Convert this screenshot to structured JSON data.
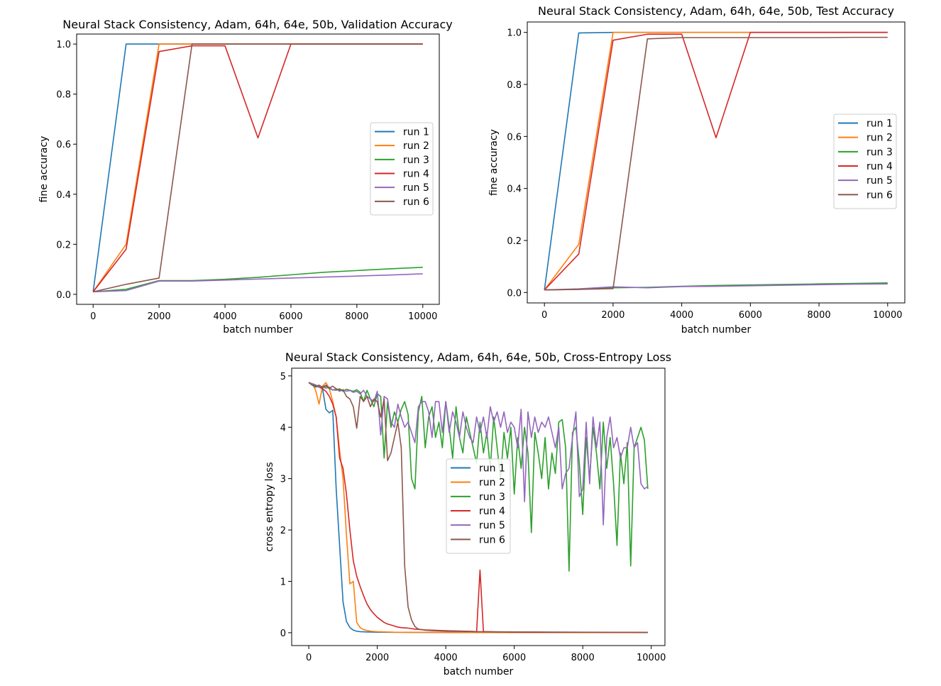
{
  "colors": {
    "run 1": "#1f77b4",
    "run 2": "#ff7f0e",
    "run 3": "#2ca02c",
    "run 4": "#d62728",
    "run 5": "#9467bd",
    "run 6": "#8c564b"
  },
  "chart_data": [
    {
      "type": "line",
      "title": "Neural Stack Consistency, Adam, 64h, 64e, 50b, Validation Accuracy",
      "xlabel": "batch number",
      "ylabel": "fine accuracy",
      "xlim": [
        -500,
        10500
      ],
      "ylim": [
        -0.04,
        1.04
      ],
      "xticks": [
        "0",
        "2000",
        "4000",
        "6000",
        "8000",
        "10000"
      ],
      "yticks": [
        "0.0",
        "0.2",
        "0.4",
        "0.6",
        "0.8",
        "1.0"
      ],
      "legend": "center-right",
      "x": [
        0,
        1000,
        2000,
        3000,
        4000,
        5000,
        6000,
        7000,
        8000,
        9000,
        10000
      ],
      "series": [
        {
          "name": "run 1",
          "values": [
            0.01,
            1.0,
            1.0,
            1.0,
            1.0,
            1.0,
            1.0,
            1.0,
            1.0,
            1.0,
            1.0
          ]
        },
        {
          "name": "run 2",
          "values": [
            0.01,
            0.2,
            1.0,
            1.0,
            1.0,
            1.0,
            1.0,
            1.0,
            1.0,
            1.0,
            1.0
          ]
        },
        {
          "name": "run 3",
          "values": [
            0.01,
            0.02,
            0.055,
            0.055,
            0.06,
            0.068,
            0.078,
            0.088,
            0.095,
            0.102,
            0.108
          ]
        },
        {
          "name": "run 4",
          "values": [
            0.01,
            0.18,
            0.97,
            0.993,
            0.993,
            0.625,
            1.0,
            1.0,
            1.0,
            1.0,
            1.0
          ]
        },
        {
          "name": "run 5",
          "values": [
            0.01,
            0.015,
            0.053,
            0.053,
            0.057,
            0.061,
            0.065,
            0.069,
            0.073,
            0.077,
            0.082
          ]
        },
        {
          "name": "run 6",
          "values": [
            0.01,
            0.04,
            0.065,
            1.0,
            1.0,
            1.0,
            1.0,
            1.0,
            1.0,
            1.0,
            1.0
          ]
        }
      ]
    },
    {
      "type": "line",
      "title": "Neural Stack Consistency, Adam, 64h, 64e, 50b, Test Accuracy",
      "xlabel": "batch number",
      "ylabel": "fine accuracy",
      "xlim": [
        -500,
        10500
      ],
      "ylim": [
        -0.04,
        1.04
      ],
      "xticks": [
        "0",
        "2000",
        "4000",
        "6000",
        "8000",
        "10000"
      ],
      "yticks": [
        "0.0",
        "0.2",
        "0.4",
        "0.6",
        "0.8",
        "1.0"
      ],
      "legend": "center-right",
      "x": [
        0,
        1000,
        2000,
        3000,
        4000,
        5000,
        6000,
        7000,
        8000,
        9000,
        10000
      ],
      "series": [
        {
          "name": "run 1",
          "values": [
            0.01,
            0.998,
            1.0,
            1.0,
            1.0,
            1.0,
            1.0,
            1.0,
            1.0,
            1.0,
            1.0
          ]
        },
        {
          "name": "run 2",
          "values": [
            0.01,
            0.185,
            1.0,
            1.0,
            1.0,
            1.0,
            1.0,
            1.0,
            1.0,
            1.0,
            1.0
          ]
        },
        {
          "name": "run 3",
          "values": [
            0.01,
            0.012,
            0.018,
            0.02,
            0.024,
            0.027,
            0.029,
            0.031,
            0.033,
            0.035,
            0.037
          ]
        },
        {
          "name": "run 4",
          "values": [
            0.01,
            0.148,
            0.97,
            0.993,
            0.993,
            0.595,
            1.0,
            1.0,
            1.0,
            1.0,
            1.0
          ]
        },
        {
          "name": "run 5",
          "values": [
            0.01,
            0.014,
            0.022,
            0.018,
            0.023,
            0.024,
            0.026,
            0.028,
            0.03,
            0.032,
            0.033
          ]
        },
        {
          "name": "run 6",
          "values": [
            0.01,
            0.012,
            0.015,
            0.975,
            0.98,
            0.98,
            0.98,
            0.98,
            0.98,
            0.981,
            0.981
          ]
        }
      ]
    },
    {
      "type": "line",
      "title": "Neural Stack Consistency, Adam, 64h, 64e, 50b, Cross-Entropy Loss",
      "xlabel": "batch number",
      "ylabel": "cross entropy loss",
      "xlim": [
        -500,
        10400
      ],
      "ylim": [
        -0.25,
        5.15
      ],
      "xticks": [
        "0",
        "2000",
        "4000",
        "6000",
        "8000",
        "10000"
      ],
      "yticks": [
        "0",
        "1",
        "2",
        "3",
        "4",
        "5"
      ],
      "legend": "center",
      "series": [
        {
          "name": "run 1",
          "x": [
            0,
            100,
            200,
            300,
            400,
            500,
            600,
            700,
            800,
            900,
            1000,
            1100,
            1200,
            1300,
            1400,
            1500,
            1700,
            2000,
            2500,
            3000,
            4000,
            5000,
            6000,
            7000,
            8000,
            9000,
            9900
          ],
          "values": [
            4.87,
            4.85,
            4.82,
            4.79,
            4.76,
            4.35,
            4.28,
            4.33,
            2.8,
            1.7,
            0.6,
            0.22,
            0.1,
            0.05,
            0.03,
            0.02,
            0.015,
            0.01,
            0.008,
            0.006,
            0.005,
            0.004,
            0.004,
            0.003,
            0.003,
            0.003,
            0.003
          ]
        },
        {
          "name": "run 2",
          "x": [
            0,
            100,
            200,
            300,
            400,
            500,
            600,
            700,
            800,
            900,
            1000,
            1100,
            1200,
            1300,
            1400,
            1500,
            1600,
            1800,
            2000,
            2500,
            3000,
            4000,
            5000,
            6000,
            7000,
            8000,
            9000,
            9900
          ],
          "values": [
            4.87,
            4.85,
            4.72,
            4.45,
            4.8,
            4.87,
            4.75,
            4.5,
            4.2,
            3.55,
            3.0,
            1.9,
            0.95,
            1.0,
            0.2,
            0.1,
            0.06,
            0.03,
            0.02,
            0.01,
            0.008,
            0.006,
            0.005,
            0.004,
            0.004,
            0.003,
            0.003,
            0.003
          ]
        },
        {
          "name": "run 3",
          "x": [
            0,
            100,
            200,
            300,
            400,
            500,
            600,
            700,
            800,
            900,
            1000,
            1100,
            1200,
            1300,
            1400,
            1500,
            1600,
            1700,
            1800,
            1900,
            2000,
            2100,
            2200,
            2300,
            2400,
            2500,
            2600,
            2700,
            2800,
            2900,
            3000,
            3100,
            3200,
            3300,
            3400,
            3500,
            3600,
            3700,
            3800,
            3900,
            4000,
            4100,
            4200,
            4300,
            4400,
            4500,
            4600,
            4700,
            4800,
            4900,
            5000,
            5100,
            5200,
            5300,
            5400,
            5500,
            5600,
            5700,
            5800,
            5900,
            6000,
            6100,
            6200,
            6300,
            6400,
            6500,
            6600,
            6700,
            6800,
            6900,
            7000,
            7100,
            7200,
            7300,
            7400,
            7500,
            7600,
            7700,
            7800,
            7900,
            8000,
            8100,
            8200,
            8300,
            8400,
            8500,
            8600,
            8700,
            8800,
            8900,
            9000,
            9100,
            9200,
            9300,
            9400,
            9500,
            9600,
            9700,
            9800,
            9900
          ],
          "values": [
            4.87,
            4.82,
            4.78,
            4.8,
            4.76,
            4.8,
            4.75,
            4.73,
            4.72,
            4.75,
            4.7,
            4.74,
            4.72,
            4.7,
            4.73,
            4.68,
            4.5,
            4.72,
            4.55,
            4.4,
            4.65,
            4.6,
            3.4,
            4.5,
            4.0,
            4.3,
            4.1,
            4.35,
            4.5,
            4.25,
            3.0,
            2.8,
            4.3,
            4.6,
            3.6,
            4.2,
            4.4,
            3.8,
            4.1,
            3.6,
            4.5,
            4.0,
            3.4,
            4.4,
            3.8,
            3.5,
            4.2,
            3.9,
            3.6,
            3.3,
            4.1,
            3.5,
            3.9,
            3.2,
            4.2,
            3.6,
            3.0,
            3.9,
            3.4,
            4.0,
            2.7,
            3.8,
            3.2,
            4.0,
            3.5,
            1.95,
            3.9,
            3.5,
            3.0,
            3.8,
            2.8,
            3.5,
            3.1,
            4.1,
            4.15,
            3.6,
            1.2,
            3.9,
            4.0,
            3.3,
            2.3,
            3.8,
            3.0,
            4.0,
            3.5,
            2.8,
            4.1,
            3.2,
            3.8,
            2.9,
            1.7,
            3.5,
            2.9,
            3.7,
            1.3,
            3.6,
            3.8,
            4.0,
            3.75,
            2.8
          ]
        },
        {
          "name": "run 4",
          "x": [
            0,
            100,
            200,
            300,
            400,
            500,
            600,
            700,
            800,
            900,
            1000,
            1100,
            1200,
            1300,
            1400,
            1500,
            1600,
            1700,
            1800,
            1900,
            2000,
            2100,
            2200,
            2300,
            2400,
            2500,
            2600,
            2700,
            2800,
            2900,
            3000,
            3100,
            3200,
            3400,
            3600,
            3800,
            4000,
            4200,
            4500,
            4800,
            4900,
            5000,
            5100,
            5200,
            5500,
            6000,
            7000,
            8000,
            9000,
            9900
          ],
          "values": [
            4.87,
            4.83,
            4.8,
            4.78,
            4.75,
            4.7,
            4.6,
            4.45,
            4.2,
            3.4,
            3.2,
            2.7,
            2.0,
            1.4,
            1.1,
            0.9,
            0.72,
            0.56,
            0.45,
            0.37,
            0.3,
            0.25,
            0.2,
            0.17,
            0.15,
            0.13,
            0.11,
            0.1,
            0.095,
            0.09,
            0.08,
            0.07,
            0.065,
            0.055,
            0.05,
            0.045,
            0.04,
            0.035,
            0.03,
            0.025,
            0.02,
            1.22,
            0.02,
            0.02,
            0.015,
            0.012,
            0.01,
            0.008,
            0.006,
            0.005
          ]
        },
        {
          "name": "run 5",
          "x": [
            0,
            100,
            200,
            300,
            400,
            500,
            600,
            700,
            800,
            900,
            1000,
            1100,
            1200,
            1300,
            1400,
            1500,
            1600,
            1700,
            1800,
            1900,
            2000,
            2100,
            2200,
            2300,
            2400,
            2500,
            2600,
            2700,
            2800,
            2900,
            3000,
            3100,
            3200,
            3300,
            3400,
            3500,
            3600,
            3700,
            3800,
            3900,
            4000,
            4100,
            4200,
            4300,
            4400,
            4500,
            4600,
            4700,
            4800,
            4900,
            5000,
            5100,
            5200,
            5300,
            5400,
            5500,
            5600,
            5700,
            5800,
            5900,
            6000,
            6100,
            6200,
            6300,
            6400,
            6500,
            6600,
            6700,
            6800,
            6900,
            7000,
            7100,
            7200,
            7300,
            7400,
            7500,
            7600,
            7700,
            7800,
            7900,
            8000,
            8100,
            8200,
            8300,
            8400,
            8500,
            8600,
            8700,
            8800,
            8900,
            9000,
            9100,
            9200,
            9300,
            9400,
            9500,
            9600,
            9700,
            9800,
            9900
          ],
          "values": [
            4.87,
            4.84,
            4.8,
            4.78,
            4.79,
            4.76,
            4.78,
            4.72,
            4.75,
            4.7,
            4.73,
            4.7,
            4.72,
            4.68,
            4.7,
            4.65,
            4.72,
            4.6,
            4.55,
            4.5,
            4.7,
            3.85,
            4.6,
            4.55,
            4.1,
            4.0,
            4.45,
            4.2,
            4.0,
            4.1,
            3.9,
            3.7,
            4.4,
            4.5,
            4.5,
            4.3,
            3.8,
            4.5,
            4.5,
            3.9,
            4.5,
            3.9,
            4.3,
            4.1,
            3.8,
            4.3,
            4.0,
            3.8,
            3.7,
            4.2,
            3.9,
            4.2,
            3.8,
            4.4,
            4.1,
            4.3,
            4.0,
            4.3,
            3.9,
            4.1,
            4.0,
            3.6,
            4.35,
            2.55,
            4.3,
            3.8,
            4.2,
            3.9,
            4.1,
            4.0,
            4.2,
            3.9,
            3.6,
            4.0,
            2.8,
            3.1,
            3.2,
            3.8,
            4.3,
            2.65,
            2.8,
            4.1,
            2.9,
            4.2,
            3.6,
            4.1,
            2.1,
            3.8,
            4.2,
            3.6,
            3.8,
            3.4,
            3.6,
            3.6,
            4.0,
            3.6,
            3.7,
            2.9,
            2.8,
            2.85
          ]
        },
        {
          "name": "run 6",
          "x": [
            0,
            100,
            200,
            300,
            400,
            500,
            600,
            700,
            800,
            900,
            1000,
            1100,
            1200,
            1300,
            1400,
            1500,
            1600,
            1700,
            1800,
            1900,
            2000,
            2100,
            2200,
            2300,
            2400,
            2500,
            2600,
            2700,
            2800,
            2900,
            3000,
            3100,
            3200,
            3400,
            3600,
            4000,
            5000,
            6000,
            7000,
            8000,
            9000,
            9900
          ],
          "values": [
            4.87,
            4.82,
            4.8,
            4.82,
            4.78,
            4.82,
            4.76,
            4.8,
            4.75,
            4.72,
            4.73,
            4.6,
            4.55,
            4.4,
            3.98,
            4.6,
            4.5,
            4.6,
            4.4,
            4.55,
            4.5,
            4.2,
            4.55,
            3.35,
            3.5,
            3.8,
            4.1,
            3.6,
            1.3,
            0.5,
            0.25,
            0.12,
            0.07,
            0.05,
            0.04,
            0.03,
            0.02,
            0.015,
            0.012,
            0.01,
            0.008,
            0.007
          ]
        }
      ]
    }
  ]
}
